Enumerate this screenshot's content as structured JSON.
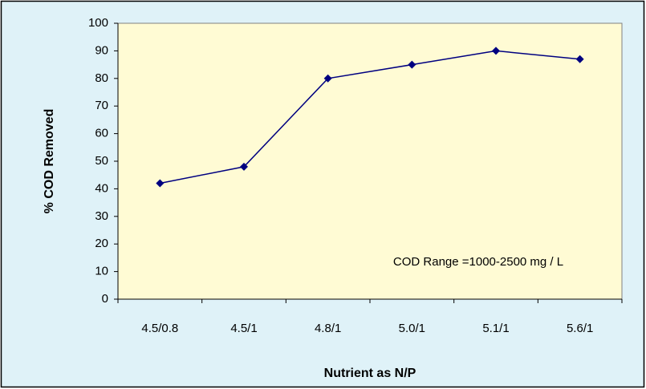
{
  "chart_data": {
    "type": "line",
    "categories": [
      "4.5/0.8",
      "4.5/1",
      "4.8/1",
      "5.0/1",
      "5.1/1",
      "5.6/1"
    ],
    "series": [
      {
        "name": "% COD Removed",
        "color": "#000080",
        "values": [
          42,
          48,
          80,
          85,
          90,
          87
        ]
      }
    ],
    "xlabel": "Nutrient as N/P",
    "ylabel": "% COD Removed",
    "annotation": "COD Range =1000-2500  mg / L",
    "ylim": [
      0,
      100
    ],
    "yticks": [
      0,
      10,
      20,
      30,
      40,
      50,
      60,
      70,
      80,
      90,
      100
    ],
    "grid": false
  }
}
